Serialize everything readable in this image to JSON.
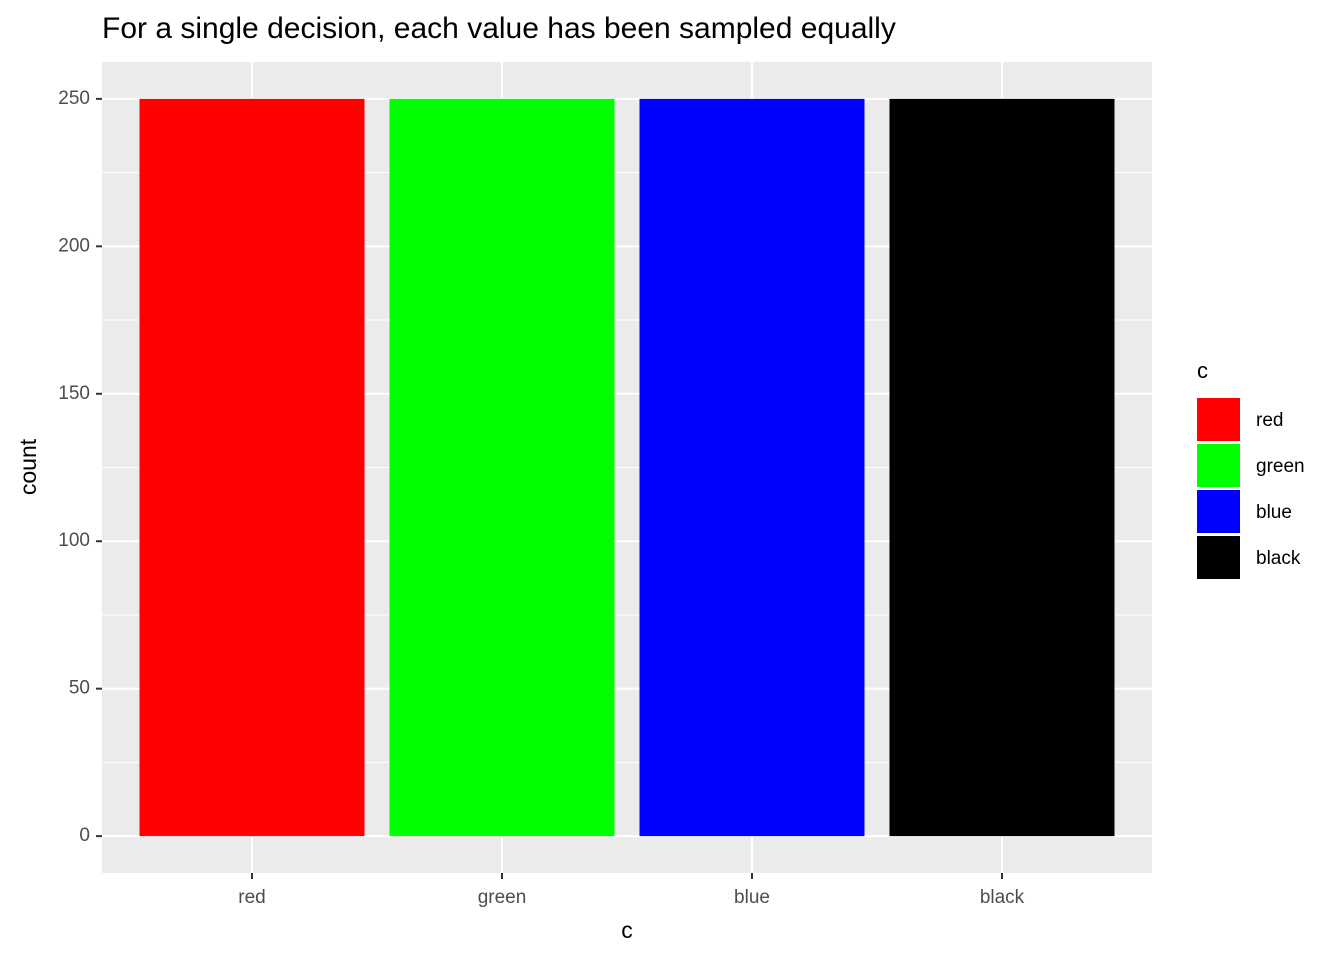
{
  "chart_data": {
    "type": "bar",
    "title": "For a single decision, each value has been sampled equally",
    "x_label": "c",
    "y_label": "count",
    "legend_title": "c",
    "categories": [
      "red",
      "green",
      "blue",
      "black"
    ],
    "values": [
      250,
      250,
      250,
      250
    ],
    "colors": [
      "#ff0000",
      "#00ff00",
      "#0000ff",
      "#000000"
    ],
    "ylim": [
      -12.5,
      262.5
    ],
    "yticks": [
      0,
      50,
      100,
      150,
      200,
      250
    ],
    "grid": true,
    "legend": "right"
  }
}
